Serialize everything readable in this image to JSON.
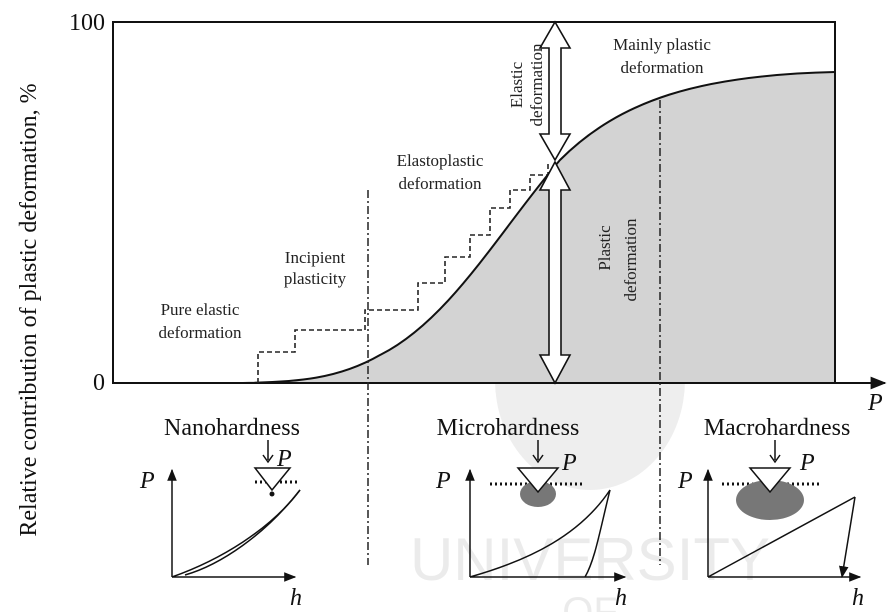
{
  "axis": {
    "y_label": "Relative contribution of plastic deformation, %",
    "y_max": "100",
    "y_min": "0",
    "x_label": "P"
  },
  "annotations": {
    "pure_elastic": [
      "Pure elastic",
      "deformation"
    ],
    "incipient": [
      "Incipient",
      "plasticity"
    ],
    "elastoplastic": [
      "Elastoplastic",
      "deformation"
    ],
    "elastic": [
      "Elastic",
      "deformation"
    ],
    "mainly_plastic": [
      "Mainly plastic",
      "deformation"
    ],
    "plastic": [
      "Plastic",
      "deformation"
    ]
  },
  "regions": [
    {
      "title": "Nanohardness",
      "load": "P",
      "y_axis": "P",
      "x_axis": "h"
    },
    {
      "title": "Microhardness",
      "load": "P",
      "y_axis": "P",
      "x_axis": "h"
    },
    {
      "title": "Macrohardness",
      "load": "P",
      "y_axis": "P",
      "x_axis": "h"
    }
  ],
  "watermark": [
    "UNIVERSITY",
    "OF"
  ]
}
